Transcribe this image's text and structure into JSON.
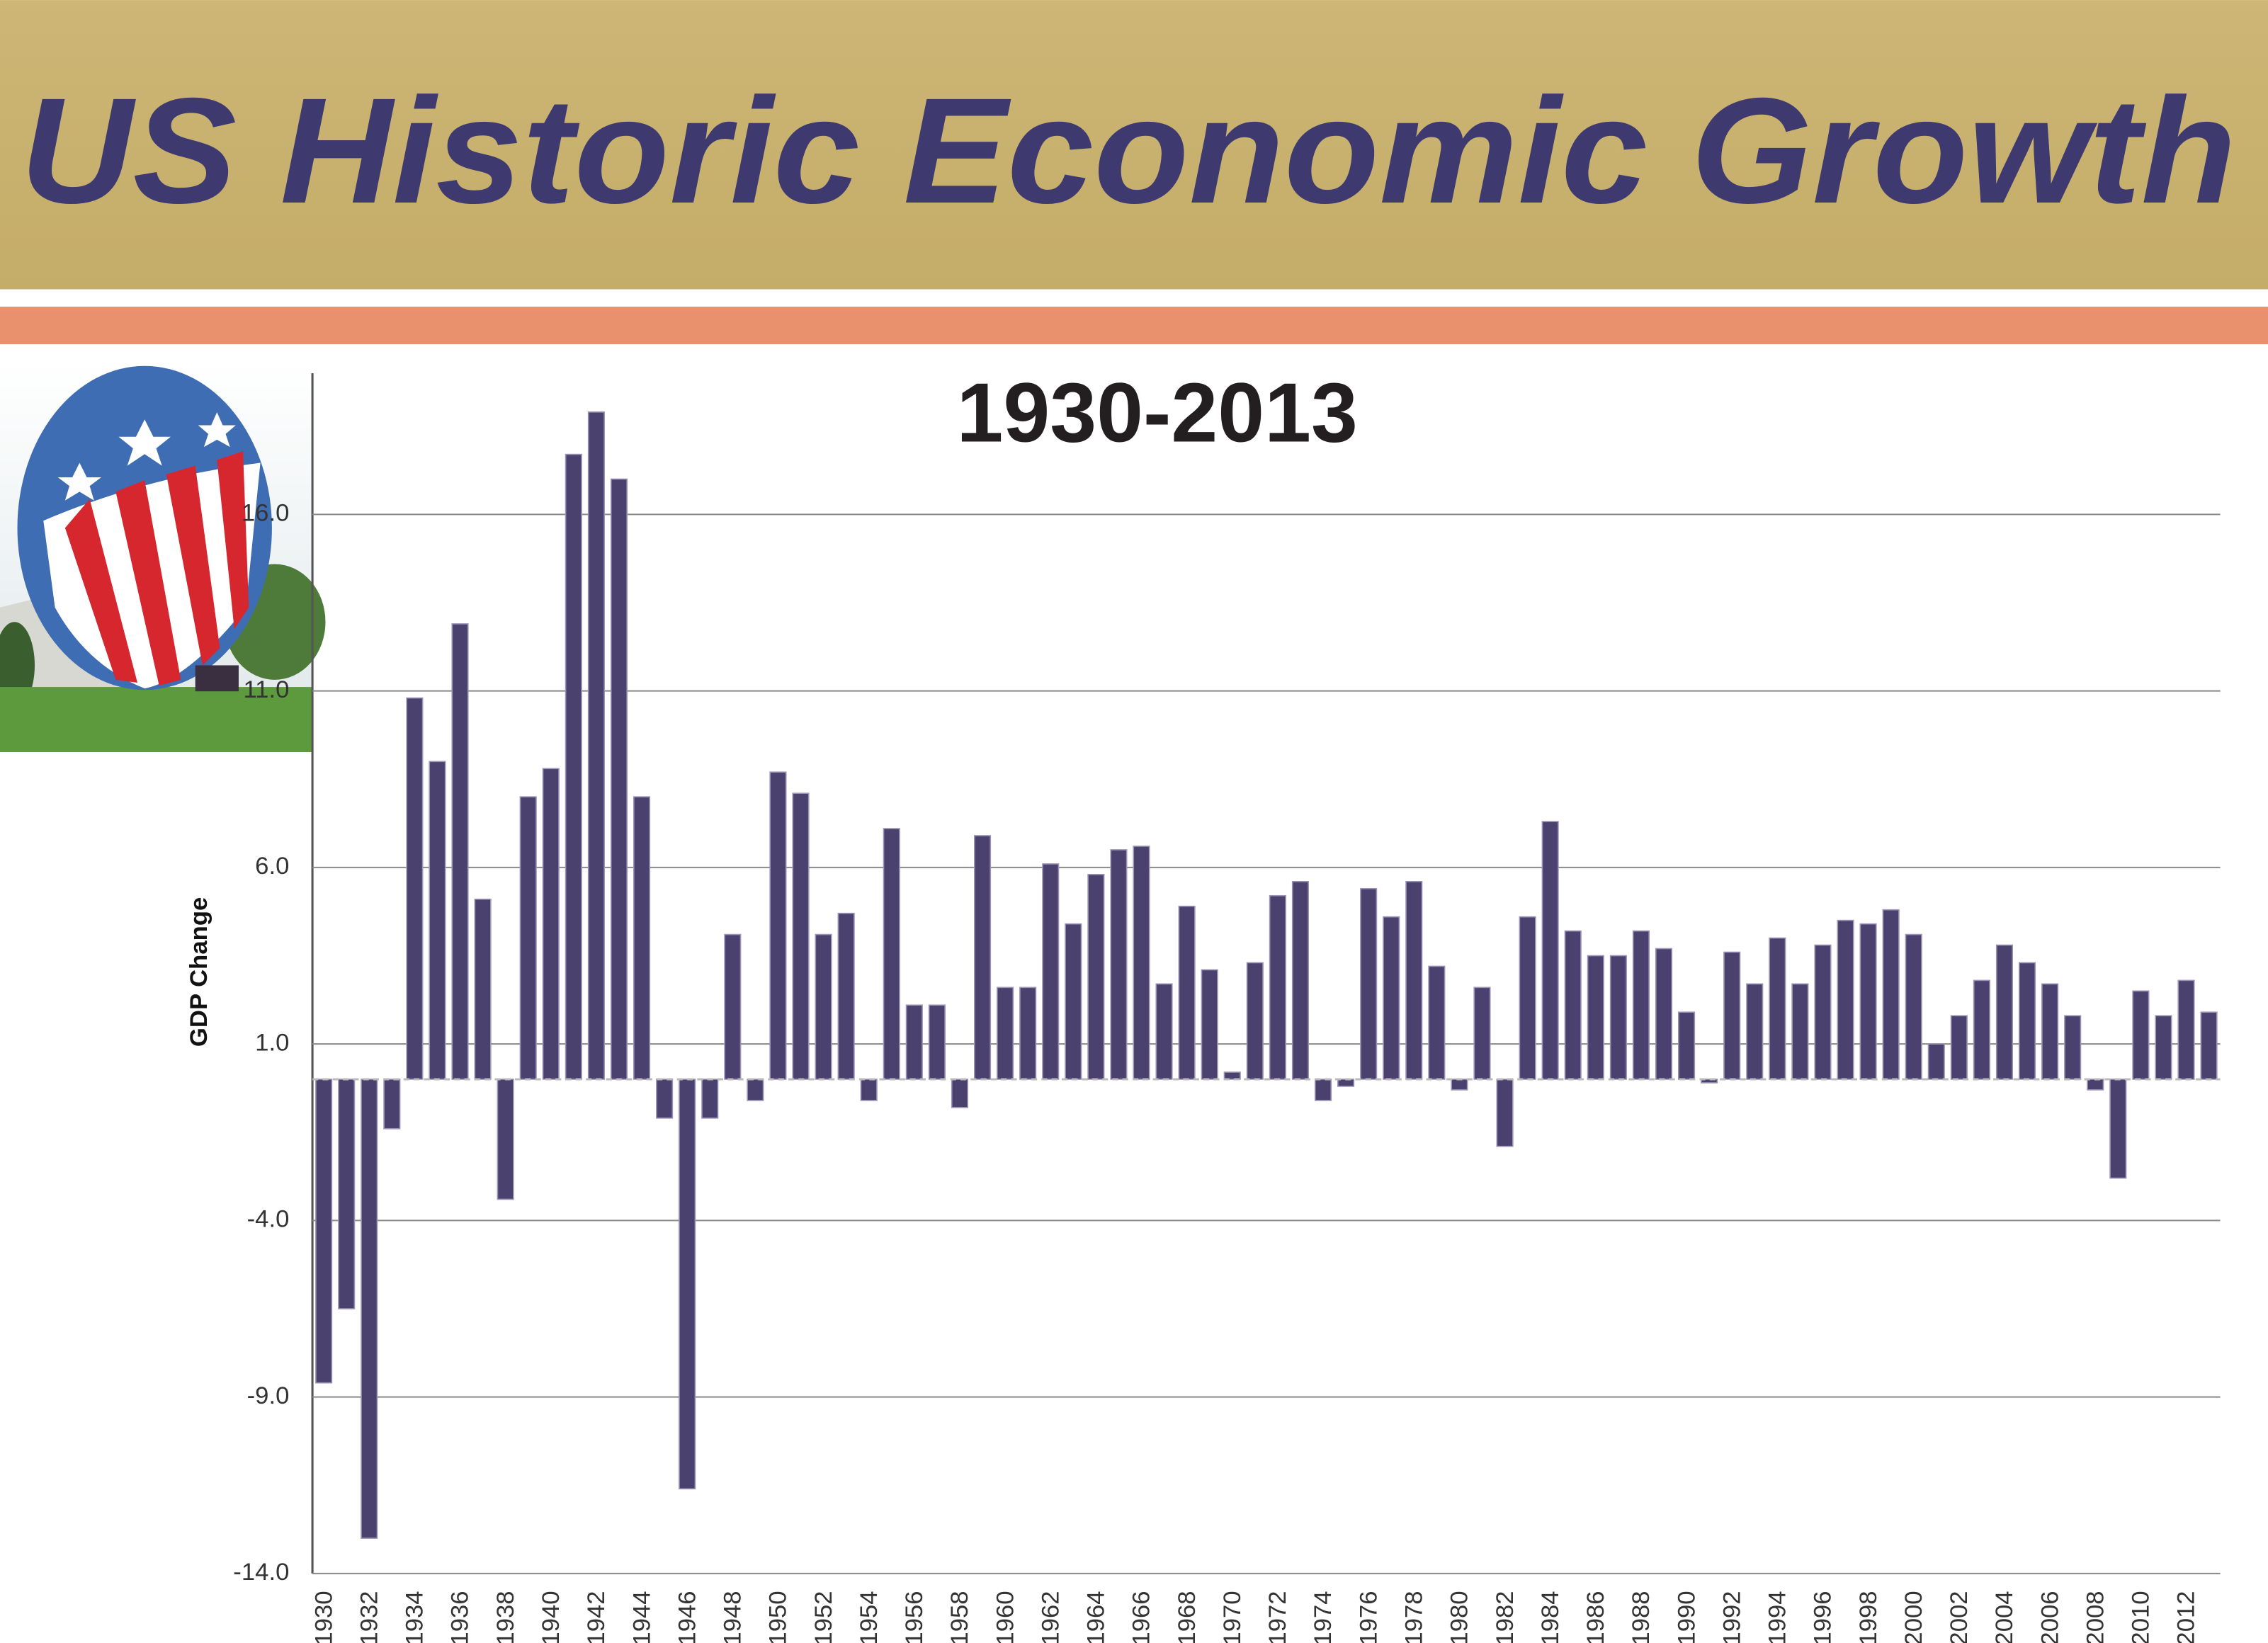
{
  "chart_data": {
    "type": "bar",
    "title": "US Historic Economic Growth",
    "subtitle": "1930-2013",
    "ylabel": "GDP Change",
    "categories": [
      "1930",
      null,
      "1932",
      null,
      "1934",
      null,
      "1936",
      null,
      "1938",
      null,
      "1940",
      null,
      "1942",
      null,
      "1944",
      null,
      "1946",
      null,
      "1948",
      null,
      "1950",
      null,
      "1952",
      null,
      "1954",
      null,
      "1956",
      null,
      "1958",
      null,
      "1960",
      null,
      "1962",
      null,
      "1964",
      null,
      "1966",
      null,
      "1968",
      null,
      "1970",
      null,
      "1972",
      null,
      "1974",
      null,
      "1976",
      null,
      "1978",
      null,
      "1980",
      null,
      "1982",
      null,
      "1984",
      null,
      "1986",
      null,
      "1988",
      null,
      "1990",
      null,
      "1992",
      null,
      "1994",
      null,
      "1996",
      null,
      "1998",
      null,
      "2000",
      null,
      "2002",
      null,
      "2004",
      null,
      "2006",
      null,
      "2008",
      null,
      "2010",
      null,
      "2012",
      null
    ],
    "values": [
      -8.6,
      -6.5,
      -13.0,
      -1.4,
      10.8,
      9.0,
      12.9,
      5.1,
      -3.4,
      8.0,
      8.8,
      17.7,
      18.9,
      17.0,
      8.0,
      -1.1,
      -11.6,
      -1.1,
      4.1,
      -0.6,
      8.7,
      8.1,
      4.1,
      4.7,
      -0.6,
      7.1,
      2.1,
      2.1,
      -0.8,
      6.9,
      2.6,
      2.6,
      6.1,
      4.4,
      5.8,
      6.5,
      6.6,
      2.7,
      4.9,
      3.1,
      0.2,
      3.3,
      5.2,
      5.6,
      -0.6,
      -0.2,
      5.4,
      4.6,
      5.6,
      3.2,
      -0.3,
      2.6,
      -1.9,
      4.6,
      7.3,
      4.2,
      3.5,
      3.5,
      4.2,
      3.7,
      1.9,
      -0.1,
      3.6,
      2.7,
      4.0,
      2.7,
      3.8,
      4.5,
      4.4,
      4.8,
      4.1,
      1.0,
      1.8,
      2.8,
      3.8,
      3.3,
      2.7,
      1.8,
      -0.3,
      -2.8,
      2.5,
      1.8,
      2.8,
      1.9
    ],
    "color": "#4b416f",
    "ylim": [
      -14,
      20
    ],
    "yticks": [
      {
        "value": -14,
        "label": "-14.0"
      },
      {
        "value": -9,
        "label": "-9.0"
      },
      {
        "value": -4,
        "label": "-4.0"
      },
      {
        "value": 1,
        "label": "1.0"
      },
      {
        "value": 6,
        "label": "6.0"
      },
      {
        "value": 11,
        "label": "11.0"
      },
      {
        "value": 16,
        "label": "16.0"
      }
    ],
    "grid": true
  }
}
